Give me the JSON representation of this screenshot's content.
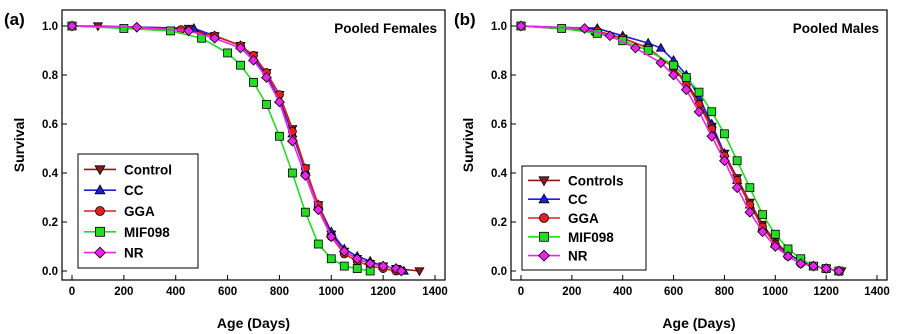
{
  "colors": {
    "control": "#8b1a1a",
    "cc": "#1f1fd6",
    "gga": "#e31f1f",
    "mif098": "#22dd22",
    "nr": "#ee22ee"
  },
  "chart_data": [
    {
      "type": "line",
      "panel": "(a)",
      "title": "Pooled Females",
      "xlabel": "Age (Days)",
      "ylabel": "Survival",
      "xlim": [
        0,
        1400
      ],
      "ylim": [
        0,
        1.0
      ],
      "xticks": [
        0,
        200,
        400,
        600,
        800,
        1000,
        1200,
        1400
      ],
      "yticks": [
        0.0,
        0.2,
        0.4,
        0.6,
        0.8,
        1.0
      ],
      "ytick_labels": [
        "0.0",
        "0.2",
        "0.4",
        "0.6",
        "0.8",
        "1.0"
      ],
      "grid": false,
      "legend": "bottom-left",
      "series": [
        {
          "name": "Control",
          "key": "control",
          "marker": "triangle-down",
          "x": [
            0,
            100,
            450,
            550,
            650,
            700,
            750,
            800,
            850,
            900,
            950,
            1000,
            1050,
            1100,
            1150,
            1200,
            1250,
            1340
          ],
          "y": [
            1.0,
            1.0,
            0.99,
            0.96,
            0.92,
            0.88,
            0.81,
            0.72,
            0.58,
            0.42,
            0.27,
            0.15,
            0.08,
            0.05,
            0.03,
            0.02,
            0.01,
            0.0
          ]
        },
        {
          "name": "CC",
          "key": "cc",
          "marker": "triangle-up",
          "x": [
            0,
            470,
            550,
            650,
            700,
            750,
            800,
            850,
            900,
            950,
            1000,
            1050,
            1100,
            1150,
            1200,
            1250,
            1280
          ],
          "y": [
            1.0,
            0.99,
            0.96,
            0.92,
            0.87,
            0.8,
            0.7,
            0.56,
            0.41,
            0.27,
            0.16,
            0.09,
            0.06,
            0.04,
            0.02,
            0.01,
            0.0
          ]
        },
        {
          "name": "GGA",
          "key": "gga",
          "marker": "circle",
          "x": [
            0,
            420,
            550,
            650,
            700,
            750,
            800,
            850,
            900,
            950,
            1000,
            1050,
            1100,
            1150,
            1200,
            1250
          ],
          "y": [
            1.0,
            0.985,
            0.96,
            0.92,
            0.88,
            0.81,
            0.72,
            0.57,
            0.42,
            0.27,
            0.14,
            0.07,
            0.04,
            0.02,
            0.01,
            0.0
          ]
        },
        {
          "name": "MIF098",
          "key": "mif098",
          "marker": "square",
          "x": [
            0,
            200,
            380,
            500,
            600,
            650,
            700,
            750,
            800,
            850,
            900,
            950,
            1000,
            1050,
            1100,
            1150
          ],
          "y": [
            1.0,
            0.99,
            0.98,
            0.95,
            0.89,
            0.84,
            0.77,
            0.68,
            0.55,
            0.4,
            0.24,
            0.11,
            0.05,
            0.02,
            0.01,
            0.0
          ]
        },
        {
          "name": "NR",
          "key": "nr",
          "marker": "diamond",
          "x": [
            0,
            250,
            450,
            550,
            650,
            700,
            750,
            800,
            850,
            900,
            950,
            1000,
            1050,
            1100,
            1150,
            1200,
            1250,
            1270
          ],
          "y": [
            1.0,
            0.995,
            0.98,
            0.95,
            0.91,
            0.86,
            0.79,
            0.69,
            0.53,
            0.39,
            0.25,
            0.14,
            0.08,
            0.05,
            0.03,
            0.02,
            0.01,
            0.0
          ]
        }
      ]
    },
    {
      "type": "line",
      "panel": "(b)",
      "title": "Pooled Males",
      "xlabel": "Age (Days)",
      "ylabel": "Survival",
      "xlim": [
        0,
        1400
      ],
      "ylim": [
        0,
        1.0
      ],
      "xticks": [
        0,
        200,
        400,
        600,
        800,
        1000,
        1200,
        1400
      ],
      "yticks": [
        0.0,
        0.2,
        0.4,
        0.6,
        0.8,
        1.0
      ],
      "ytick_labels": [
        "0.0",
        "0.2",
        "0.4",
        "0.6",
        "0.8",
        "1.0"
      ],
      "grid": false,
      "legend": "bottom-left",
      "series": [
        {
          "name": "Controls",
          "key": "control",
          "marker": "triangle-down",
          "x": [
            0,
            280,
            400,
            500,
            600,
            650,
            700,
            750,
            800,
            850,
            900,
            950,
            1000,
            1050,
            1100,
            1150,
            1200,
            1260
          ],
          "y": [
            1.0,
            0.98,
            0.95,
            0.91,
            0.83,
            0.77,
            0.69,
            0.59,
            0.48,
            0.38,
            0.28,
            0.19,
            0.12,
            0.07,
            0.04,
            0.02,
            0.01,
            0.0
          ]
        },
        {
          "name": "CC",
          "key": "cc",
          "marker": "triangle-up",
          "x": [
            0,
            300,
            400,
            500,
            550,
            600,
            650,
            700,
            750,
            800,
            850,
            900,
            950,
            1000,
            1050,
            1100,
            1150,
            1200,
            1250
          ],
          "y": [
            1.0,
            0.99,
            0.96,
            0.93,
            0.91,
            0.86,
            0.8,
            0.71,
            0.6,
            0.48,
            0.37,
            0.27,
            0.18,
            0.11,
            0.07,
            0.04,
            0.02,
            0.01,
            0.0
          ]
        },
        {
          "name": "GGA",
          "key": "gga",
          "marker": "circle",
          "x": [
            0,
            300,
            400,
            500,
            600,
            650,
            700,
            750,
            800,
            850,
            900,
            950,
            1000,
            1050,
            1100,
            1150,
            1200,
            1250
          ],
          "y": [
            1.0,
            0.98,
            0.95,
            0.91,
            0.83,
            0.76,
            0.68,
            0.58,
            0.47,
            0.37,
            0.27,
            0.18,
            0.11,
            0.06,
            0.03,
            0.02,
            0.01,
            0.0
          ]
        },
        {
          "name": "MIF098",
          "key": "mif098",
          "marker": "square",
          "x": [
            0,
            160,
            300,
            400,
            500,
            600,
            650,
            700,
            750,
            800,
            850,
            900,
            950,
            1000,
            1050,
            1100,
            1150,
            1200,
            1250
          ],
          "y": [
            1.0,
            0.99,
            0.97,
            0.94,
            0.9,
            0.84,
            0.79,
            0.73,
            0.65,
            0.56,
            0.45,
            0.34,
            0.23,
            0.15,
            0.09,
            0.05,
            0.02,
            0.01,
            0.0
          ]
        },
        {
          "name": "NR",
          "key": "nr",
          "marker": "diamond",
          "x": [
            0,
            250,
            350,
            450,
            550,
            600,
            650,
            700,
            750,
            800,
            850,
            900,
            950,
            1000,
            1050,
            1100,
            1150,
            1200,
            1250
          ],
          "y": [
            1.0,
            0.99,
            0.96,
            0.91,
            0.85,
            0.8,
            0.74,
            0.65,
            0.55,
            0.45,
            0.34,
            0.24,
            0.16,
            0.1,
            0.06,
            0.03,
            0.02,
            0.01,
            0.0
          ]
        }
      ]
    }
  ]
}
